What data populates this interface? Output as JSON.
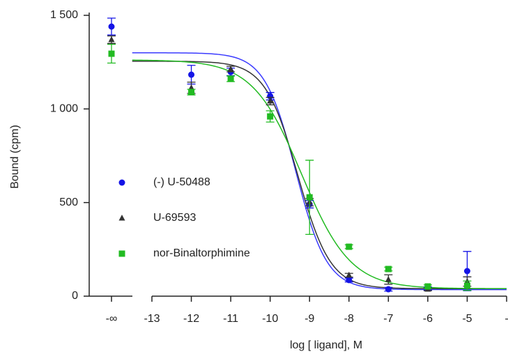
{
  "chart_data": {
    "type": "dose-response",
    "x_label": "log [ ligand], M",
    "y_label": "Bound (cpm)",
    "x_break_label": "-∞",
    "x": [
      -12,
      -11,
      -10,
      -9,
      -8,
      -7,
      -6,
      -5
    ],
    "xlim": [
      -13.5,
      -4
    ],
    "xticks": [
      -13,
      -12,
      -11,
      -10,
      -9,
      -8,
      -7,
      -6,
      -5,
      {
        "value": -4,
        "label": "-"
      }
    ],
    "ylim": [
      0,
      1500
    ],
    "yticks": [
      0,
      500,
      {
        "value": 1000,
        "label": "1 000"
      },
      {
        "value": 1500,
        "label": "1 500"
      }
    ],
    "legend": "left-middle",
    "series": [
      {
        "name": "(-) U-50488",
        "color": "#1414e6",
        "line_color": "#3a3aff",
        "marker": "circle",
        "neg_inf_value": 1440,
        "neg_inf_error": 45,
        "values": [
          1183,
          1198,
          1068,
          491,
          86,
          37,
          41,
          134
        ],
        "errors": [
          50,
          20,
          20,
          20,
          10,
          10,
          8,
          105
        ],
        "fit": {
          "top": 1300,
          "bottom": 35,
          "log_ic50": -9.35,
          "hill": -1.1
        }
      },
      {
        "name": "U-69593",
        "color": "#333333",
        "line_color": "#333333",
        "marker": "triangle",
        "neg_inf_value": 1370,
        "neg_inf_error": 20,
        "values": [
          1113,
          1213,
          1042,
          502,
          112,
          89,
          37,
          78
        ],
        "errors": [
          30,
          15,
          20,
          20,
          10,
          25,
          8,
          25
        ],
        "fit": {
          "top": 1255,
          "bottom": 40,
          "log_ic50": -9.3,
          "hill": -1.05
        }
      },
      {
        "name": "nor-Binaltorphimine",
        "color": "#22bb22",
        "line_color": "#22bb22",
        "marker": "square",
        "neg_inf_value": 1295,
        "neg_inf_error": 50,
        "values": [
          1090,
          1161,
          960,
          528,
          264,
          145,
          52,
          56
        ],
        "errors": [
          15,
          15,
          30,
          198,
          10,
          10,
          8,
          25
        ],
        "fit": {
          "top": 1262,
          "bottom": 40,
          "log_ic50": -9.2,
          "hill": -0.7
        }
      }
    ]
  }
}
